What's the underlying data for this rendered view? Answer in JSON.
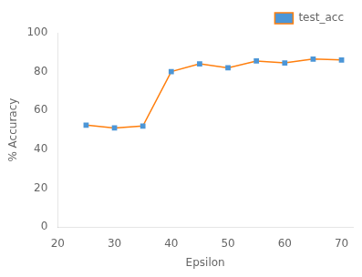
{
  "chart_data": {
    "type": "line",
    "x": [
      25,
      30,
      35,
      40,
      45,
      50,
      55,
      60,
      65,
      70
    ],
    "series": [
      {
        "name": "test_acc",
        "color": "#ff7f0e",
        "marker": "square",
        "colors": [
          "#4c96d7",
          "#4c96d7",
          "#4c96d7",
          "#4c96d7",
          "#4c96d7",
          "#4c96d7",
          "#4c96d7",
          "#4c96d7",
          "#4c96d7",
          "#4c96d7"
        ],
        "values": [
          52.5,
          51.0,
          52.0,
          80.0,
          84.0,
          82.0,
          85.5,
          84.5,
          86.5,
          86.0
        ]
      }
    ],
    "x_label": "Epsilon",
    "y_label": "% Accuracy",
    "xlim": [
      20,
      72
    ],
    "ylim": [
      0,
      100
    ],
    "xticks": [
      20,
      30,
      40,
      50,
      60,
      70
    ],
    "yticks": [
      0,
      20,
      40,
      60,
      80,
      100
    ],
    "grid": false,
    "legend": "upper right"
  }
}
